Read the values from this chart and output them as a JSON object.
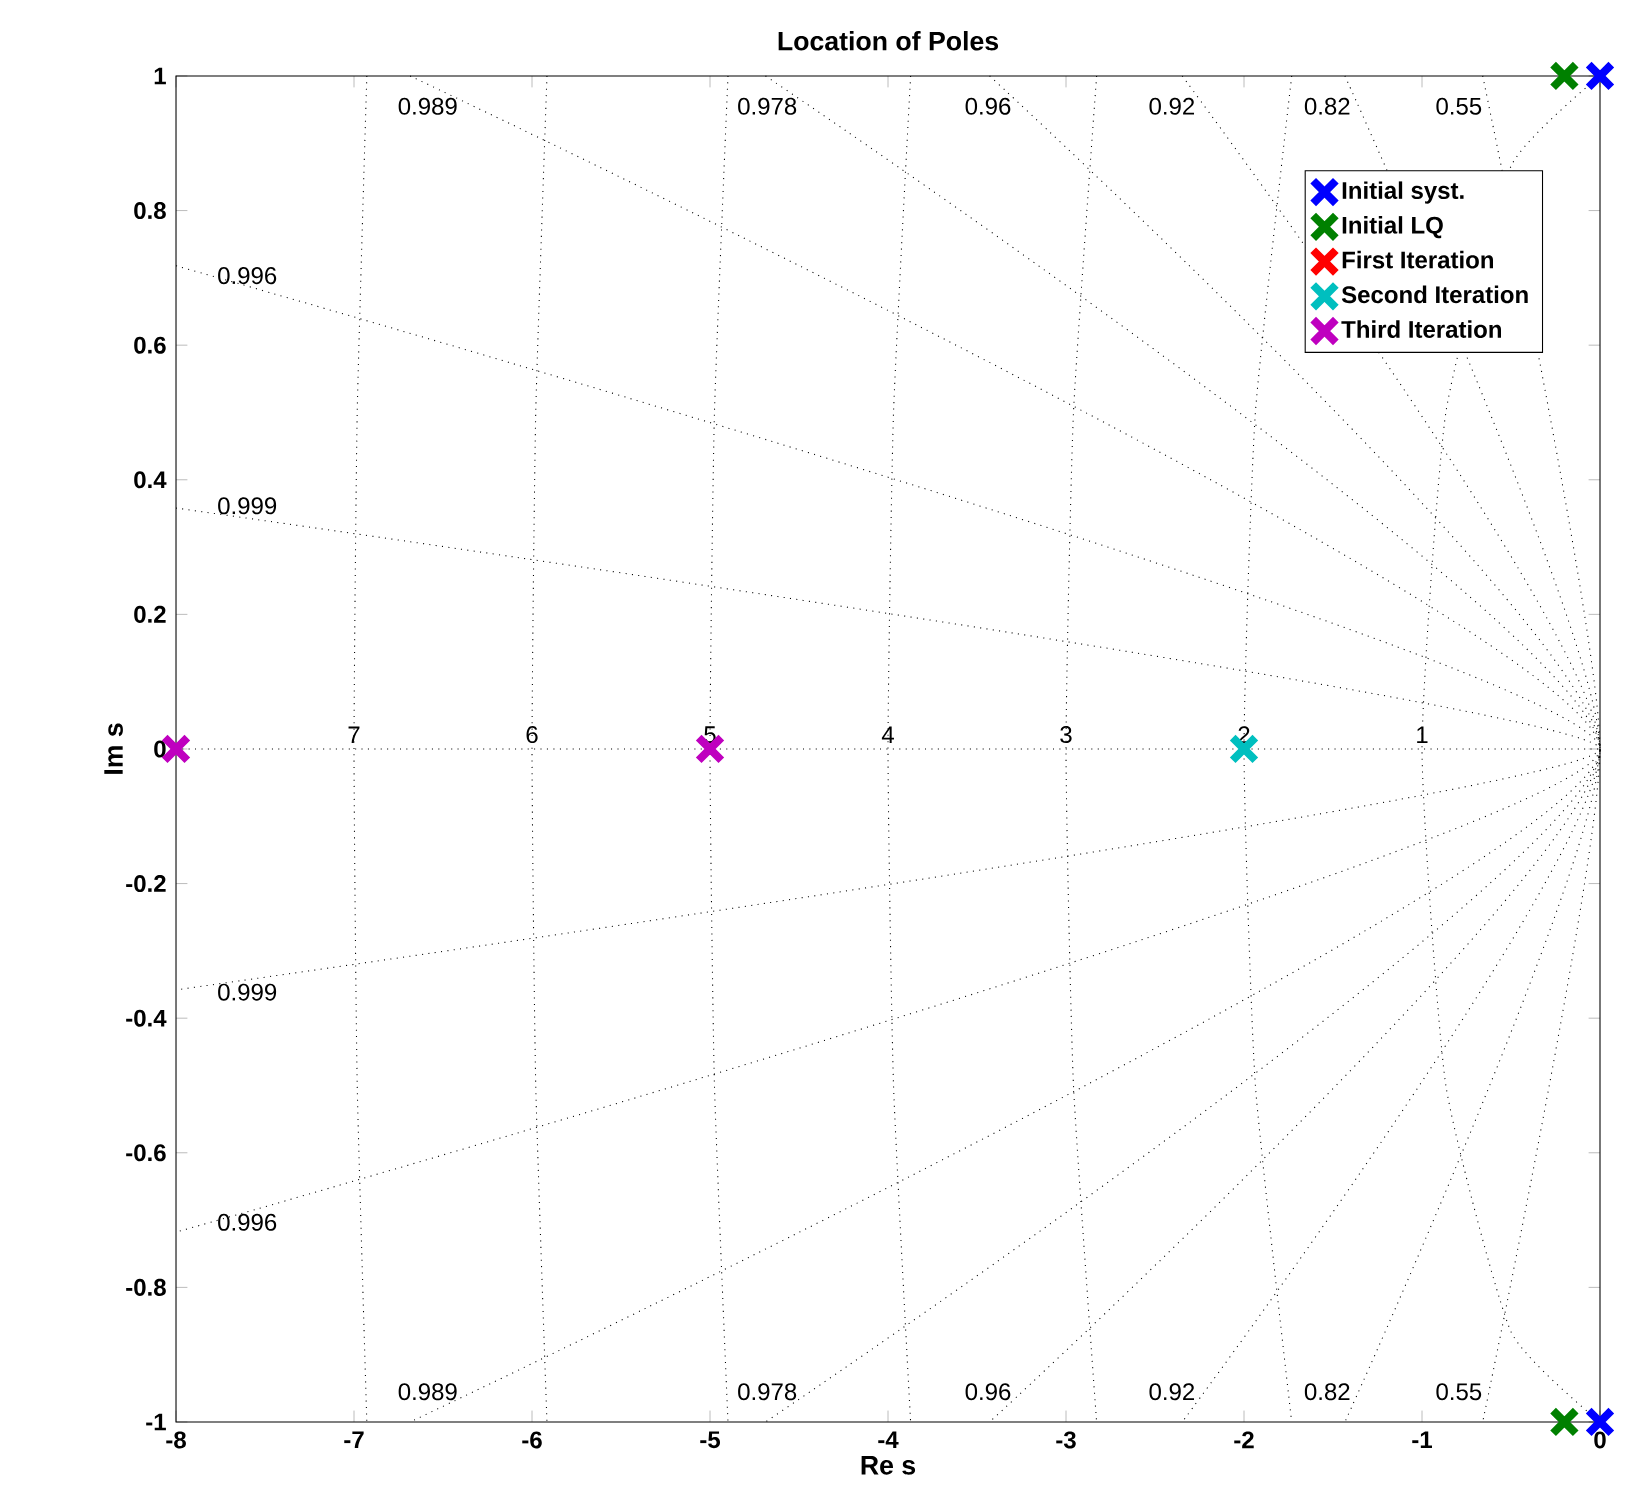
{
  "chart_data": {
    "type": "scatter",
    "title": "Location of Poles",
    "xlabel": "Re s",
    "ylabel": "Im s",
    "xlim": [
      -8,
      0
    ],
    "ylim": [
      -1,
      1
    ],
    "xticks": [
      -8,
      -7,
      -6,
      -5,
      -4,
      -3,
      -2,
      -1,
      0
    ],
    "yticks": [
      -1,
      -0.8,
      -0.6,
      -0.4,
      -0.2,
      0,
      0.2,
      0.4,
      0.6,
      0.8,
      1
    ],
    "marker": "cross",
    "legend": "top right",
    "series": [
      {
        "type": "line",
        "color": "#000000",
        "line_style": "dotted",
        "marker": "none",
        "x": [
          -0.659,
          0,
          -0.659
        ],
        "values": [
          1,
          0,
          -1
        ]
      },
      {
        "type": "line",
        "color": "#000000",
        "line_style": "dotted",
        "marker": "none",
        "x": [
          -1.433,
          0,
          -1.433
        ],
        "values": [
          1,
          0,
          -1
        ]
      },
      {
        "type": "line",
        "color": "#000000",
        "line_style": "dotted",
        "marker": "none",
        "x": [
          -2.347,
          0,
          -2.347
        ],
        "values": [
          1,
          0,
          -1
        ]
      },
      {
        "type": "line",
        "color": "#000000",
        "line_style": "dotted",
        "marker": "none",
        "x": [
          -3.429,
          0,
          -3.429
        ],
        "values": [
          1,
          0,
          -1
        ]
      },
      {
        "type": "line",
        "color": "#000000",
        "line_style": "dotted",
        "marker": "none",
        "x": [
          -4.688,
          0,
          -4.688
        ],
        "values": [
          1,
          0,
          -1
        ]
      },
      {
        "type": "line",
        "color": "#000000",
        "line_style": "dotted",
        "marker": "none",
        "x": [
          -6.685,
          0,
          -6.685
        ],
        "values": [
          1,
          0,
          -1
        ]
      },
      {
        "type": "line",
        "color": "#000000",
        "line_style": "dotted",
        "marker": "none",
        "x": [
          -8,
          0,
          -8
        ],
        "values": [
          0.718,
          0,
          -0.718
        ]
      },
      {
        "type": "line",
        "color": "#000000",
        "line_style": "dotted",
        "marker": "none",
        "x": [
          -8,
          0,
          -8
        ],
        "values": [
          0.358,
          0,
          -0.358
        ]
      },
      {
        "type": "line",
        "color": "#000000",
        "line_style": "dotted",
        "marker": "none",
        "x": [
          -8,
          0
        ],
        "values": [
          0,
          0
        ]
      },
      {
        "type": "line",
        "color": "#000000",
        "line_style": "dotted",
        "marker": "none",
        "x": [
          0,
          -0.5,
          -0.866,
          -1,
          -0.866,
          -0.5,
          0
        ],
        "values": [
          1,
          0.866,
          0.5,
          0,
          -0.5,
          -0.866,
          -1
        ]
      },
      {
        "type": "line",
        "color": "#000000",
        "line_style": "dotted",
        "marker": "none",
        "x": [
          -1.732,
          -1.936,
          -2,
          -1.936,
          -1.732
        ],
        "values": [
          1,
          0.5,
          0,
          -0.5,
          -1
        ]
      },
      {
        "type": "line",
        "color": "#000000",
        "line_style": "dotted",
        "marker": "none",
        "x": [
          -2.828,
          -2.958,
          -3,
          -2.958,
          -2.828
        ],
        "values": [
          1,
          0.5,
          0,
          -0.5,
          -1
        ]
      },
      {
        "type": "line",
        "color": "#000000",
        "line_style": "dotted",
        "marker": "none",
        "x": [
          -3.873,
          -3.969,
          -4,
          -3.969,
          -3.873
        ],
        "values": [
          1,
          0.5,
          0,
          -0.5,
          -1
        ]
      },
      {
        "type": "line",
        "color": "#000000",
        "line_style": "dotted",
        "marker": "none",
        "x": [
          -4.899,
          -4.975,
          -5,
          -4.975,
          -4.899
        ],
        "values": [
          1,
          0.5,
          0,
          -0.5,
          -1
        ]
      },
      {
        "type": "line",
        "color": "#000000",
        "line_style": "dotted",
        "marker": "none",
        "x": [
          -5.916,
          -5.979,
          -6,
          -5.979,
          -5.916
        ],
        "values": [
          1,
          0.5,
          0,
          -0.5,
          -1
        ]
      },
      {
        "type": "line",
        "color": "#000000",
        "line_style": "dotted",
        "marker": "none",
        "x": [
          -6.928,
          -6.982,
          -7,
          -6.982,
          -6.928
        ],
        "values": [
          1,
          0.5,
          0,
          -0.5,
          -1
        ]
      },
      {
        "name": "Initial syst.",
        "color": "#0000ff",
        "x": [
          0,
          0
        ],
        "values": [
          1,
          -1
        ]
      },
      {
        "name": "Initial LQ",
        "color": "#008000",
        "x": [
          -0.2,
          -0.2
        ],
        "values": [
          1,
          -1
        ]
      },
      {
        "name": "First Iteration",
        "color": "#ff0000"
      },
      {
        "name": "Second Iteration",
        "color": "#00bfbf",
        "x": [
          -2
        ],
        "values": [
          0
        ]
      },
      {
        "name": "Third Iteration",
        "color": "#bf00bf",
        "x": [
          -8,
          -5
        ],
        "values": [
          0,
          0
        ]
      }
    ],
    "annotations": [
      {
        "text": "0.989",
        "x": -6.384,
        "y": 0.955
      },
      {
        "text": "0.978",
        "x": -4.477,
        "y": 0.955
      },
      {
        "text": "0.96",
        "x": -3.274,
        "y": 0.955
      },
      {
        "text": "0.92",
        "x": -2.241,
        "y": 0.955
      },
      {
        "text": "0.82",
        "x": -1.368,
        "y": 0.955
      },
      {
        "text": "0.55",
        "x": -0.629,
        "y": 0.955
      },
      {
        "text": "0.996",
        "x": -7.6,
        "y": 0.682
      },
      {
        "text": "0.999",
        "x": -7.6,
        "y": 0.34
      },
      {
        "text": "0.999",
        "x": -7.6,
        "y": -0.34
      },
      {
        "text": "0.996",
        "x": -7.6,
        "y": -0.682
      },
      {
        "text": "0.989",
        "x": -6.384,
        "y": -0.955
      },
      {
        "text": "0.978",
        "x": -4.477,
        "y": -0.955
      },
      {
        "text": "0.96",
        "x": -3.274,
        "y": -0.955
      },
      {
        "text": "0.92",
        "x": -2.241,
        "y": -0.955
      },
      {
        "text": "0.82",
        "x": -1.368,
        "y": -0.955
      },
      {
        "text": "0.55",
        "x": -0.629,
        "y": -0.955
      },
      {
        "text": "7",
        "x": -7,
        "y": 0
      },
      {
        "text": "6",
        "x": -6,
        "y": 0
      },
      {
        "text": "5",
        "x": -5,
        "y": 0
      },
      {
        "text": "4",
        "x": -4,
        "y": 0
      },
      {
        "text": "3",
        "x": -3,
        "y": 0
      },
      {
        "text": "2",
        "x": -2,
        "y": 0
      },
      {
        "text": "1",
        "x": -1,
        "y": 0
      }
    ]
  }
}
